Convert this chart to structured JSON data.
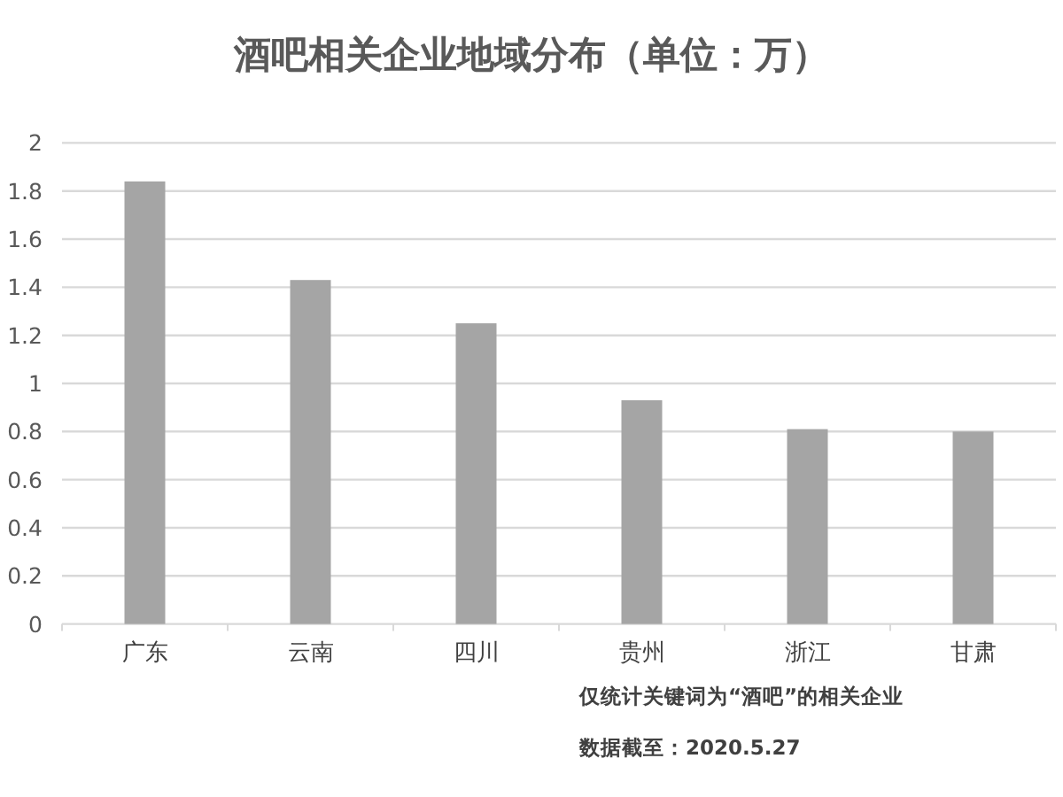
{
  "chart_data": {
    "type": "bar",
    "title": "酒吧相关企业地域分布（单位：万）",
    "categories": [
      "广东",
      "云南",
      "四川",
      "贵州",
      "浙江",
      "甘肃"
    ],
    "values": [
      1.84,
      1.43,
      1.25,
      0.93,
      0.81,
      0.8
    ],
    "color": "#a5a5a5",
    "ylim": [
      0,
      2
    ],
    "yticks": [
      0,
      0.2,
      0.4,
      0.6,
      0.8,
      1,
      1.2,
      1.4,
      1.6,
      1.8,
      2
    ],
    "grid": "y",
    "annotations": [
      "仅统计关键词为“酒吧”的相关企业",
      "数据截至：2020.5.27"
    ]
  }
}
